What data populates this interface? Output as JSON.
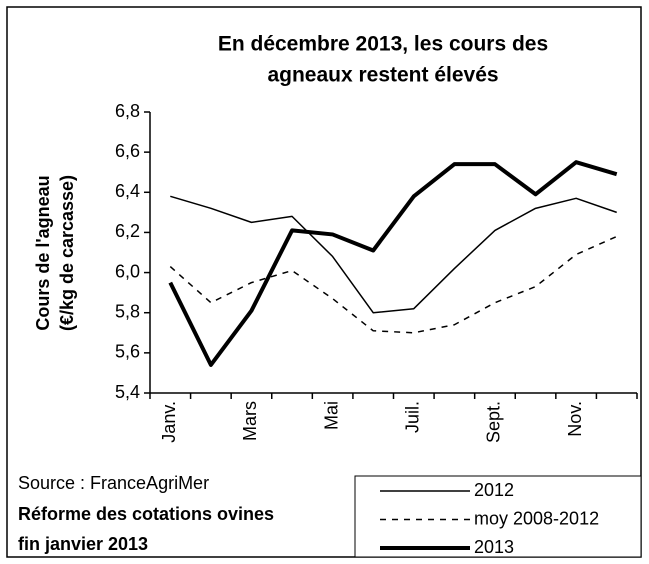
{
  "chart_data": {
    "type": "line",
    "title": [
      "En décembre 2013, les cours des",
      "agneaux restent élevés"
    ],
    "y_label": [
      "Cours de l'agneau",
      "(€/kg de carcasse)"
    ],
    "categories": [
      "Janv.",
      null,
      "Mars",
      null,
      "Mai",
      null,
      "Juil.",
      null,
      "Sept.",
      null,
      "Nov.",
      null
    ],
    "series": [
      {
        "name": "2012",
        "color": "#000000",
        "line_style": "solid",
        "line_width": 1.5,
        "values": [
          6.38,
          6.32,
          6.25,
          6.28,
          6.08,
          5.8,
          5.82,
          6.02,
          6.21,
          6.32,
          6.37,
          6.3
        ]
      },
      {
        "name": "moy 2008-2012",
        "color": "#000000",
        "line_style": "dashed",
        "line_width": 1.5,
        "values": [
          6.03,
          5.85,
          5.95,
          6.01,
          5.87,
          5.71,
          5.7,
          5.74,
          5.85,
          5.93,
          6.09,
          6.18
        ]
      },
      {
        "name": "2013",
        "color": "#000000",
        "line_style": "solid",
        "line_width": 4,
        "values": [
          5.95,
          5.54,
          5.81,
          6.21,
          6.19,
          6.11,
          6.38,
          6.54,
          6.54,
          6.39,
          6.55,
          6.49
        ]
      }
    ],
    "ylim": [
      5.4,
      6.8
    ],
    "yticks": [
      {
        "value": 5.4,
        "label": "5,4"
      },
      {
        "value": 5.6,
        "label": "5,6"
      },
      {
        "value": 5.8,
        "label": "5,8"
      },
      {
        "value": 6.0,
        "label": "6,0"
      },
      {
        "value": 6.2,
        "label": "6,2"
      },
      {
        "value": 6.4,
        "label": "6,4"
      },
      {
        "value": 6.6,
        "label": "6,6"
      },
      {
        "value": 6.8,
        "label": "6,8"
      }
    ],
    "grid": false,
    "legend": "bottom-right",
    "source": "Source : FranceAgriMer",
    "note": [
      "Réforme des cotations ovines",
      "fin janvier 2013"
    ]
  }
}
